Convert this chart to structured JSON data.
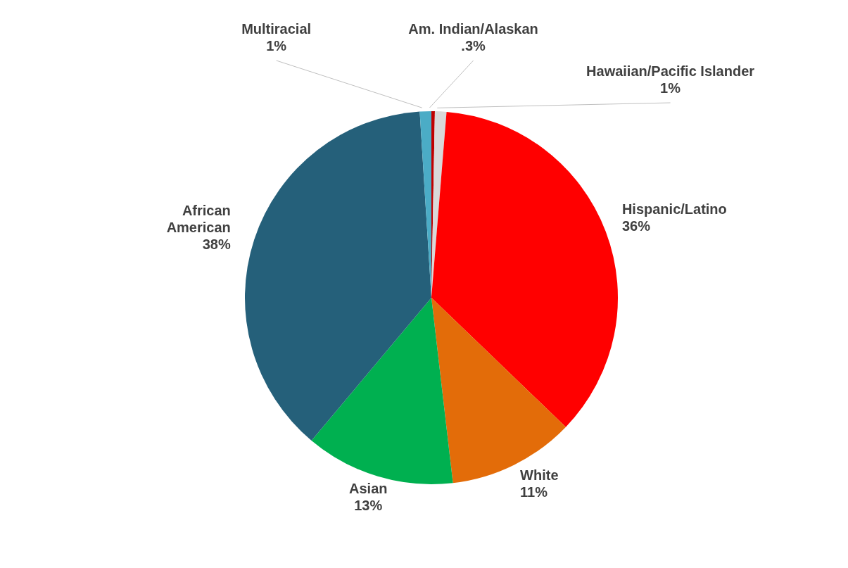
{
  "chart_data": {
    "type": "pie",
    "categories": [
      "Am. Indian/Alaskan",
      "Hawaiian/Pacific Islander",
      "Hispanic/Latino",
      "White",
      "Asian",
      "African American",
      "Multiracial"
    ],
    "values": [
      0.3,
      1,
      36,
      11,
      13,
      38,
      1
    ],
    "value_labels": [
      ".3%",
      "1%",
      "36%",
      "11%",
      "13%",
      "38%",
      "1%"
    ],
    "colors": [
      "#c00000",
      "#d9d9d9",
      "#ff0000",
      "#e36c09",
      "#00b050",
      "#25607a",
      "#4bacc6"
    ],
    "legend": false
  }
}
